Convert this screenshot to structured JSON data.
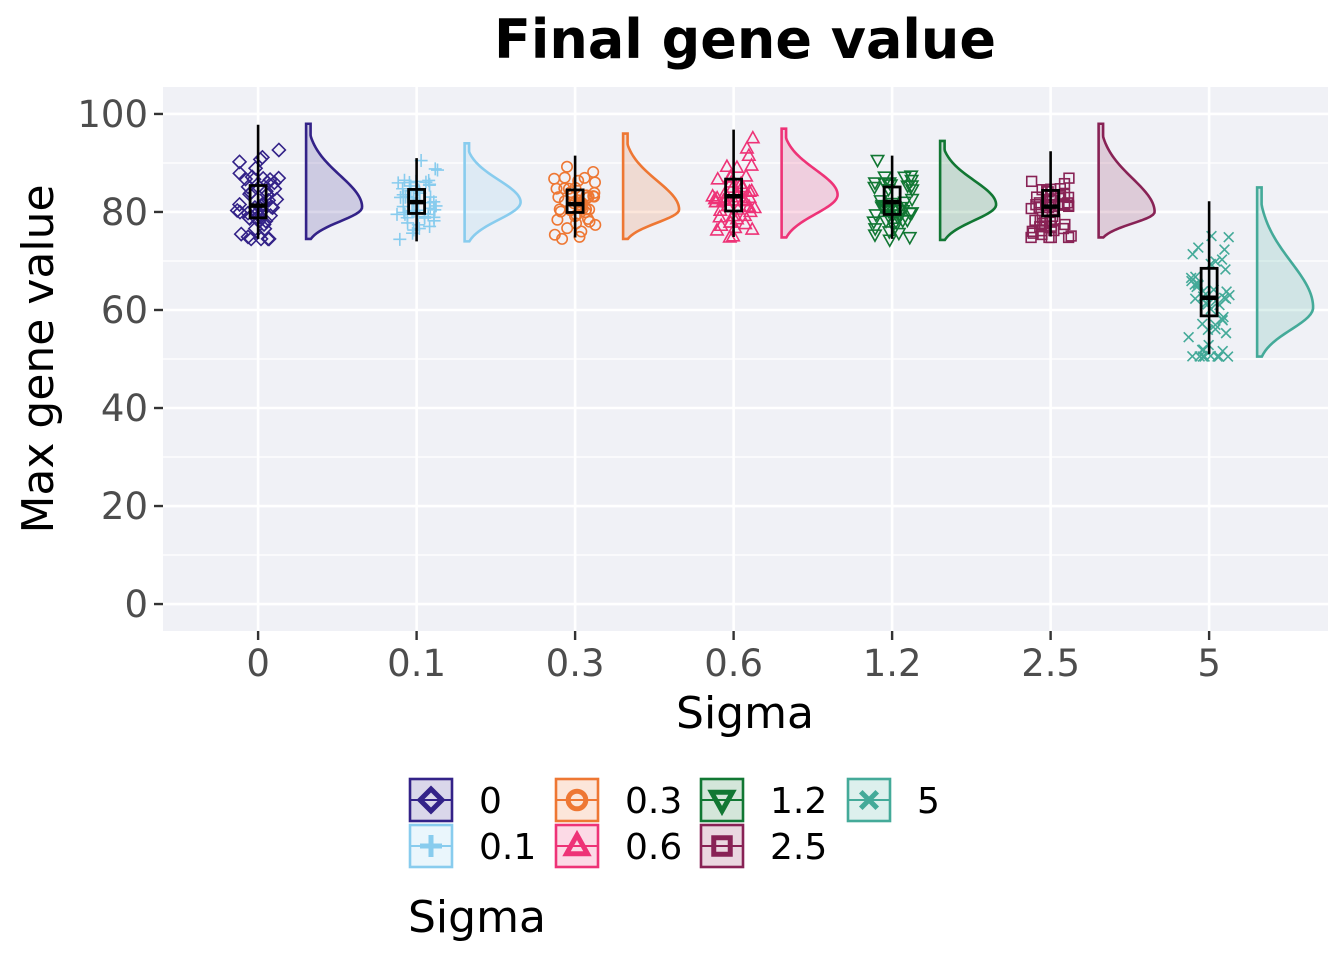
{
  "chart_data": {
    "type": "raincloud",
    "title": "Final gene value",
    "xlabel": "Sigma",
    "ylabel": "Max gene value",
    "categories": [
      "0",
      "0.1",
      "0.3",
      "0.6",
      "1.2",
      "2.5",
      "5"
    ],
    "ylim": [
      -5.5,
      105.5
    ],
    "yticks": [
      0,
      20,
      40,
      60,
      80,
      100
    ],
    "grid": true,
    "legend": {
      "title": "Sigma",
      "placement": "bottom",
      "entries": [
        "0",
        "0.1",
        "0.3",
        "0.6",
        "1.2",
        "2.5",
        "5"
      ]
    },
    "series": [
      {
        "name": "0",
        "color": "#332288",
        "shape": "diamond",
        "box": {
          "min": 74.5,
          "q1": 78.8,
          "median": 81.3,
          "q3": 85.4,
          "max": 97.8
        },
        "range": [
          74.5,
          98
        ],
        "mode": 81
      },
      {
        "name": "0.1",
        "color": "#88CCEE",
        "shape": "plus",
        "box": {
          "min": 74,
          "q1": 79.7,
          "median": 82,
          "q3": 84.6,
          "max": 91
        },
        "range": [
          74,
          94
        ],
        "mode": 82
      },
      {
        "name": "0.3",
        "color": "#EE7733",
        "shape": "circle",
        "box": {
          "min": 74.8,
          "q1": 79.9,
          "median": 81.6,
          "q3": 84.5,
          "max": 91.5
        },
        "range": [
          74.5,
          96
        ],
        "mode": 80.5
      },
      {
        "name": "0.6",
        "color": "#EE3377",
        "shape": "triangle",
        "box": {
          "min": 74.9,
          "q1": 80.2,
          "median": 83.2,
          "q3": 86.7,
          "max": 96.8
        },
        "range": [
          74.8,
          97
        ],
        "mode": 83.5
      },
      {
        "name": "1.2",
        "color": "#117733",
        "shape": "triangle-down",
        "box": {
          "min": 74.5,
          "q1": 79.5,
          "median": 82,
          "q3": 85.1,
          "max": 91.5
        },
        "range": [
          74.3,
          94.5
        ],
        "mode": 81.5
      },
      {
        "name": "2.5",
        "color": "#882255",
        "shape": "square",
        "box": {
          "min": 75,
          "q1": 79.2,
          "median": 81.1,
          "q3": 84.4,
          "max": 92.4
        },
        "range": [
          74.8,
          98
        ],
        "mode": 80
      },
      {
        "name": "5",
        "color": "#44AA99",
        "shape": "x",
        "box": {
          "min": 51,
          "q1": 58.8,
          "median": 62.5,
          "q3": 68.5,
          "max": 82.2
        },
        "range": [
          50.5,
          85
        ],
        "mode": 60.5
      }
    ]
  }
}
